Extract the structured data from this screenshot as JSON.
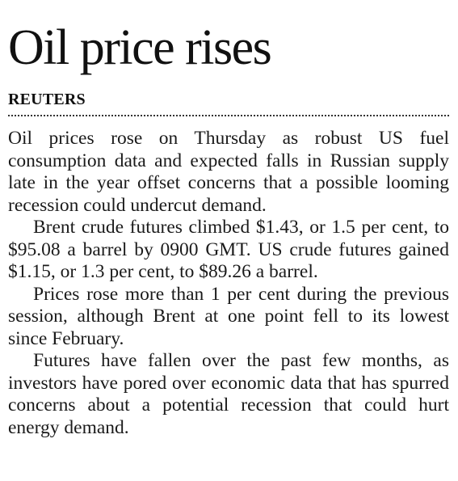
{
  "article": {
    "headline": "Oil price rises",
    "byline": "REUTERS",
    "paragraphs": [
      "Oil prices rose on Thursday as robust US fuel consumption data and expected falls in Russian supply late in the year offset concerns that a possible looming recession could undercut demand.",
      "Brent crude futures climbed $1.43, or 1.5 per cent, to $95.08 a barrel by 0900 GMT. US crude futures gained $1.15, or 1.3 per cent, to $89.26 a barrel.",
      "Prices rose more than 1 per cent during the previous session, although Brent at one point fell to its lowest since February.",
      "Futures have fallen over the past few months, as investors have pored over economic data that has spurred concerns about a potential recession that could hurt energy demand."
    ]
  }
}
